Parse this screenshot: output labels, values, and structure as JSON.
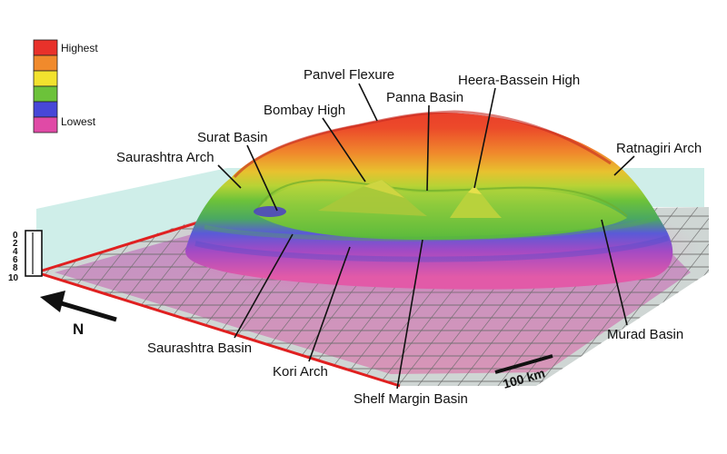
{
  "legend": {
    "colors": [
      "#e8312a",
      "#f08a2c",
      "#f2e22e",
      "#6cc23a",
      "#4747d8",
      "#e04aa6"
    ],
    "highest_label": "Highest",
    "lowest_label": "Lowest"
  },
  "depth_scale": {
    "ticks": [
      "0",
      "2",
      "4",
      "6",
      "8",
      "10"
    ]
  },
  "north_label": "N",
  "scale_bar_label": "100 km",
  "features": {
    "panvel_flexure": "Panvel Flexure",
    "heera_bassein_high": "Heera-Bassein High",
    "panna_basin": "Panna Basin",
    "bombay_high": "Bombay High",
    "surat_basin": "Surat Basin",
    "saurashtra_arch": "Saurashtra Arch",
    "ratnagiri_arch": "Ratnagiri Arch",
    "saurashtra_basin": "Saurashtra Basin",
    "kori_arch": "Kori Arch",
    "shelf_margin_basin": "Shelf Margin Basin",
    "murad_basin": "Murad Basin"
  }
}
